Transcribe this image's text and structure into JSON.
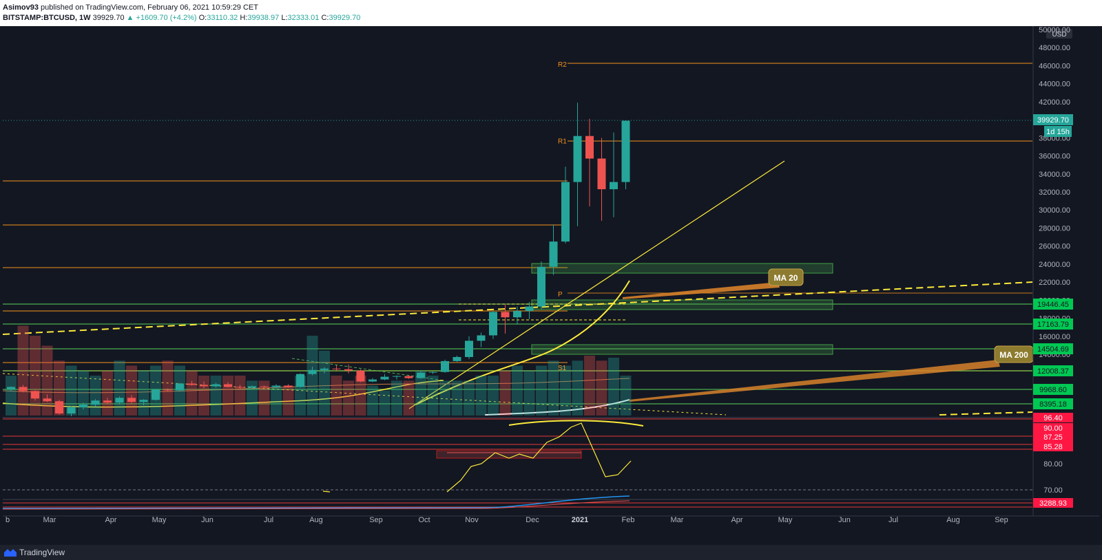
{
  "header": {
    "author": "Asimov93",
    "published": "published on TradingView.com, February 06, 2021 10:59:29 CET",
    "symbol": "BITSTAMP:BTCUSD, 1W",
    "last": "39929.70",
    "change": "▲ +1609.70 (+4.2%)",
    "o_label": "O:",
    "o_value": "33110.32",
    "h_label": "H:",
    "h_value": "39938.97",
    "l_label": "L:",
    "l_value": "32333.01",
    "c_label": "C:",
    "c_value": "39929.70"
  },
  "footer": {
    "brand": "TradingView"
  },
  "colors": {
    "bg": "#131722",
    "up": "#26a69a",
    "down": "#ef5350",
    "orange": "#f7931a",
    "green": "#00e676",
    "yellow": "#ffeb3b",
    "red": "#ff1744"
  },
  "chart_data": {
    "type": "candlestick",
    "title": "",
    "currency": "USD",
    "timeframe": "1W",
    "x_tick_labels": [
      "b",
      "Mar",
      "Apr",
      "May",
      "Jun",
      "Jul",
      "Aug",
      "Sep",
      "Oct",
      "Nov",
      "Dec",
      "2021",
      "Feb",
      "Mar",
      "Apr",
      "May",
      "Jun",
      "Jul",
      "Aug",
      "Sep"
    ],
    "ylim": [
      7000,
      50000
    ],
    "y_tick_labels": [
      "50000.00",
      "48000.00",
      "46000.00",
      "44000.00",
      "42000.00",
      "38000.00",
      "36000.00",
      "34000.00",
      "32000.00",
      "30000.00",
      "28000.00",
      "26000.00",
      "24000.00",
      "22000.00",
      "20000.00",
      "18000.00",
      "16000.00",
      "14000.00"
    ],
    "price_badges": [
      {
        "label": "39929.70",
        "kind": "last"
      },
      {
        "label": "1d 15h",
        "kind": "countdown"
      },
      {
        "label": "19446.45",
        "kind": "green"
      },
      {
        "label": "17163.79",
        "kind": "green"
      },
      {
        "label": "14504.69",
        "kind": "green"
      },
      {
        "label": "12008.37",
        "kind": "green"
      },
      {
        "label": "9968.60",
        "kind": "green"
      },
      {
        "label": "8395.18",
        "kind": "green"
      }
    ],
    "pivot_labels": [
      {
        "label": "R2",
        "value": 46200
      },
      {
        "label": "R1",
        "value": 37700
      },
      {
        "label": "P",
        "value": 20700
      },
      {
        "label": "S1",
        "value": 12100
      }
    ],
    "callouts": [
      "MA 20",
      "MA 200"
    ],
    "rsi_ticks": [
      "96.40",
      "90.00",
      "87.25",
      "85.28",
      "80.00",
      "70.00"
    ],
    "lower_badge": "3288.93",
    "candles": [
      {
        "o": 8900,
        "h": 9300,
        "l": 8600,
        "c": 9200
      },
      {
        "o": 9200,
        "h": 9500,
        "l": 8400,
        "c": 8600
      },
      {
        "o": 8600,
        "h": 8700,
        "l": 7200,
        "c": 7500
      },
      {
        "o": 7500,
        "h": 8100,
        "l": 7000,
        "c": 7100
      },
      {
        "o": 7100,
        "h": 7300,
        "l": 5100,
        "c": 5300
      },
      {
        "o": 5300,
        "h": 6400,
        "l": 4900,
        "c": 6200
      },
      {
        "o": 6200,
        "h": 6900,
        "l": 5900,
        "c": 6600
      },
      {
        "o": 6600,
        "h": 7400,
        "l": 6300,
        "c": 7200
      },
      {
        "o": 7200,
        "h": 7600,
        "l": 6700,
        "c": 6900
      },
      {
        "o": 6900,
        "h": 7800,
        "l": 6600,
        "c": 7600
      },
      {
        "o": 7600,
        "h": 8000,
        "l": 6800,
        "c": 7000
      },
      {
        "o": 7000,
        "h": 7400,
        "l": 6500,
        "c": 7300
      },
      {
        "o": 7300,
        "h": 8900,
        "l": 7200,
        "c": 8800
      },
      {
        "o": 8800,
        "h": 9000,
        "l": 8500,
        "c": 8700
      },
      {
        "o": 8700,
        "h": 9800,
        "l": 8500,
        "c": 9700
      },
      {
        "o": 9700,
        "h": 10100,
        "l": 9400,
        "c": 9500
      },
      {
        "o": 9500,
        "h": 10000,
        "l": 9000,
        "c": 9300
      },
      {
        "o": 9300,
        "h": 9800,
        "l": 9100,
        "c": 9600
      },
      {
        "o": 9600,
        "h": 9900,
        "l": 9100,
        "c": 9200
      },
      {
        "o": 9200,
        "h": 9500,
        "l": 8900,
        "c": 9100
      },
      {
        "o": 9100,
        "h": 9400,
        "l": 8900,
        "c": 9300
      },
      {
        "o": 9300,
        "h": 9400,
        "l": 8900,
        "c": 9200
      },
      {
        "o": 9200,
        "h": 9600,
        "l": 9000,
        "c": 9400
      },
      {
        "o": 9400,
        "h": 9600,
        "l": 9100,
        "c": 9200
      },
      {
        "o": 9200,
        "h": 11200,
        "l": 9100,
        "c": 11100
      },
      {
        "o": 11100,
        "h": 12200,
        "l": 10900,
        "c": 11700
      },
      {
        "o": 11700,
        "h": 12100,
        "l": 11200,
        "c": 11900
      },
      {
        "o": 11900,
        "h": 12400,
        "l": 11600,
        "c": 11800
      },
      {
        "o": 11800,
        "h": 12500,
        "l": 11200,
        "c": 11600
      },
      {
        "o": 11600,
        "h": 11800,
        "l": 9900,
        "c": 10000
      },
      {
        "o": 10000,
        "h": 10500,
        "l": 9900,
        "c": 10300
      },
      {
        "o": 10300,
        "h": 11100,
        "l": 10200,
        "c": 10700
      },
      {
        "o": 10700,
        "h": 10900,
        "l": 10300,
        "c": 10800
      },
      {
        "o": 10800,
        "h": 10900,
        "l": 10400,
        "c": 10500
      },
      {
        "o": 10500,
        "h": 11600,
        "l": 10400,
        "c": 11300
      },
      {
        "o": 11300,
        "h": 11500,
        "l": 11100,
        "c": 11400
      },
      {
        "o": 11400,
        "h": 13200,
        "l": 11300,
        "c": 13000
      },
      {
        "o": 13000,
        "h": 13800,
        "l": 12900,
        "c": 13600
      },
      {
        "o": 13600,
        "h": 16000,
        "l": 13300,
        "c": 15500
      },
      {
        "o": 15500,
        "h": 16400,
        "l": 14800,
        "c": 16100
      },
      {
        "o": 16100,
        "h": 18800,
        "l": 15700,
        "c": 18700
      },
      {
        "o": 18700,
        "h": 19500,
        "l": 16300,
        "c": 18100
      },
      {
        "o": 18100,
        "h": 19300,
        "l": 17300,
        "c": 18800
      },
      {
        "o": 18800,
        "h": 19800,
        "l": 17900,
        "c": 19300
      },
      {
        "o": 19300,
        "h": 24300,
        "l": 19000,
        "c": 23700
      },
      {
        "o": 23700,
        "h": 28400,
        "l": 22800,
        "c": 26500
      },
      {
        "o": 26500,
        "h": 34800,
        "l": 26300,
        "c": 33100
      },
      {
        "o": 33100,
        "h": 41900,
        "l": 28200,
        "c": 38200
      },
      {
        "o": 38200,
        "h": 40100,
        "l": 30400,
        "c": 35700
      },
      {
        "o": 35700,
        "h": 38000,
        "l": 28800,
        "c": 32300
      },
      {
        "o": 32300,
        "h": 38600,
        "l": 29200,
        "c": 33100
      },
      {
        "o": 33100,
        "h": 39900,
        "l": 32300,
        "c": 39900
      }
    ]
  }
}
